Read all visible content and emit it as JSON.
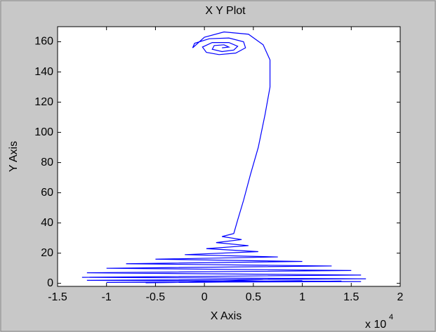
{
  "chart_data": {
    "type": "line",
    "title": "X Y Plot",
    "x_label": "X Axis",
    "y_label": "Y Axis",
    "x_scale_label": "x 10",
    "x_scale_exponent": "4",
    "color": "#0000ff",
    "x": [
      0.18,
      0.25,
      0.2,
      0.1,
      0.08,
      0.18,
      0.3,
      0.34,
      0.25,
      0.08,
      -0.02,
      0.02,
      0.15,
      0.32,
      0.42,
      0.4,
      0.25,
      0.05,
      -0.1,
      -0.12,
      0.0,
      0.2,
      0.45,
      0.6,
      0.67,
      0.67,
      0.62,
      0.55,
      0.47,
      0.4,
      0.34,
      0.3,
      0.18,
      0.38,
      0.12,
      0.45,
      0.02,
      0.55,
      -0.2,
      0.75,
      -0.5,
      1.0,
      -0.8,
      1.3,
      -1.0,
      1.5,
      -1.2,
      1.6,
      -1.25,
      1.65,
      -1.2,
      1.6,
      -1.0,
      1.4,
      -0.6,
      1.0,
      -0.2,
      0.6
    ],
    "values": [
      156,
      156.5,
      158,
      157.5,
      155,
      153.5,
      154.5,
      157,
      159.5,
      159.5,
      156.5,
      153,
      151.5,
      152.5,
      156,
      160,
      162.5,
      162,
      159,
      156,
      163,
      166.5,
      165,
      158,
      148,
      130,
      112,
      90,
      72,
      55,
      42,
      33,
      31,
      29,
      27,
      25,
      23,
      21,
      19,
      17.5,
      16,
      14.5,
      13,
      11.5,
      10,
      8.5,
      7,
      5.5,
      4,
      3,
      2,
      1.2,
      0.6,
      1.5,
      0.4,
      1.8,
      0.8,
      2.5
    ],
    "xlim": [
      -1.5,
      2
    ],
    "xticks": [
      -1.5,
      -1,
      -0.5,
      0,
      0.5,
      1,
      1.5,
      2
    ],
    "ylim": [
      -2,
      170
    ],
    "yticks": [
      0,
      20,
      40,
      60,
      80,
      100,
      120,
      140,
      160
    ]
  }
}
